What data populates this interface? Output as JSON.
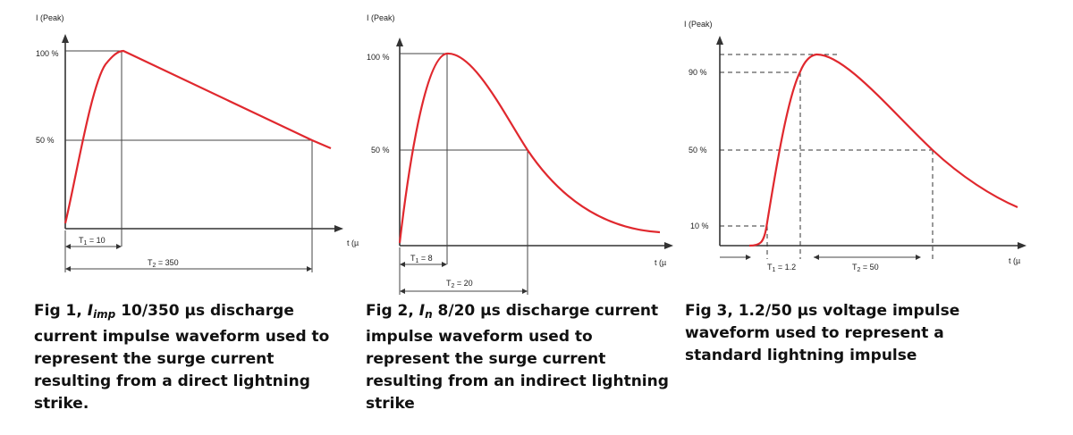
{
  "figures": [
    {
      "y_axis_label": "I (Peak)",
      "ticks": {
        "t100": "100 %",
        "t50": "50 %"
      },
      "t_axis_label": "t (µ",
      "t1_main": "T",
      "t1_sub": "1",
      "t1_value": " = 10",
      "t2_main": "T",
      "t2_sub": "2",
      "t2_value": " = 350",
      "caption": {
        "prefix": "Fig 1, ",
        "symbol": "I",
        "symbol_sub": "imp",
        "text": " 10/350 µs discharge current impulse waveform used to represent the surge current resulting from a direct lightning strike."
      }
    },
    {
      "y_axis_label": "I (Peak)",
      "ticks": {
        "t100": "100 %",
        "t50": "50 %"
      },
      "t_axis_label": "t (µ",
      "t1_main": "T",
      "t1_sub": "1",
      "t1_value": " = 8",
      "t2_main": "T",
      "t2_sub": "2",
      "t2_value": " = 20",
      "caption": {
        "prefix": "Fig 2, ",
        "symbol": "I",
        "symbol_sub": "n",
        "text": " 8/20 µs discharge current impulse waveform used to represent the surge current resulting from an indirect lightning strike"
      }
    },
    {
      "y_axis_label": "I (Peak)",
      "ticks": {
        "t90": "90 %",
        "t50": "50 %",
        "t10": "10 %"
      },
      "t_axis_label": "t (µ",
      "t1_main": "T",
      "t1_sub": "1",
      "t1_value": " = 1.2",
      "t2_main": "T",
      "t2_sub": "2",
      "t2_value": " = 50",
      "caption": {
        "text": "Fig 3, 1.2/50 µs voltage impulse waveform used to represent a standard lightning impulse"
      }
    }
  ],
  "colors": {
    "curve": "#e0282e",
    "axis": "#333333",
    "text": "#111111"
  }
}
